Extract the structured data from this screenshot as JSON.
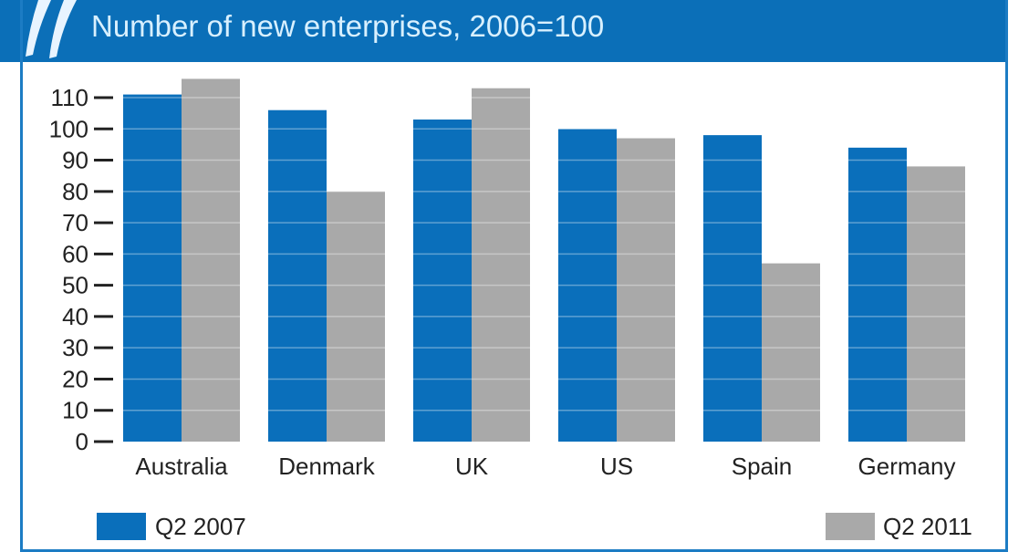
{
  "header": {
    "subtitle": "Number of new enterprises, 2006=100"
  },
  "chart_data": {
    "type": "bar",
    "title": "",
    "subtitle": "Number of new enterprises, 2006=100",
    "categories": [
      "Australia",
      "Denmark",
      "UK",
      "US",
      "Spain",
      "Germany"
    ],
    "series": [
      {
        "name": "Q2 2007",
        "color": "#0a6fbb",
        "values": [
          111,
          106,
          103,
          100,
          98,
          94
        ]
      },
      {
        "name": "Q2 2011",
        "color": "#a9a9a9",
        "values": [
          116,
          80,
          113,
          97,
          57,
          88
        ]
      }
    ],
    "yticks": [
      0,
      10,
      20,
      30,
      40,
      50,
      60,
      70,
      80,
      90,
      100,
      110
    ],
    "ylim": [
      0,
      116
    ],
    "xlabel": "",
    "ylabel": "",
    "grid": true,
    "legend": "bottom"
  }
}
